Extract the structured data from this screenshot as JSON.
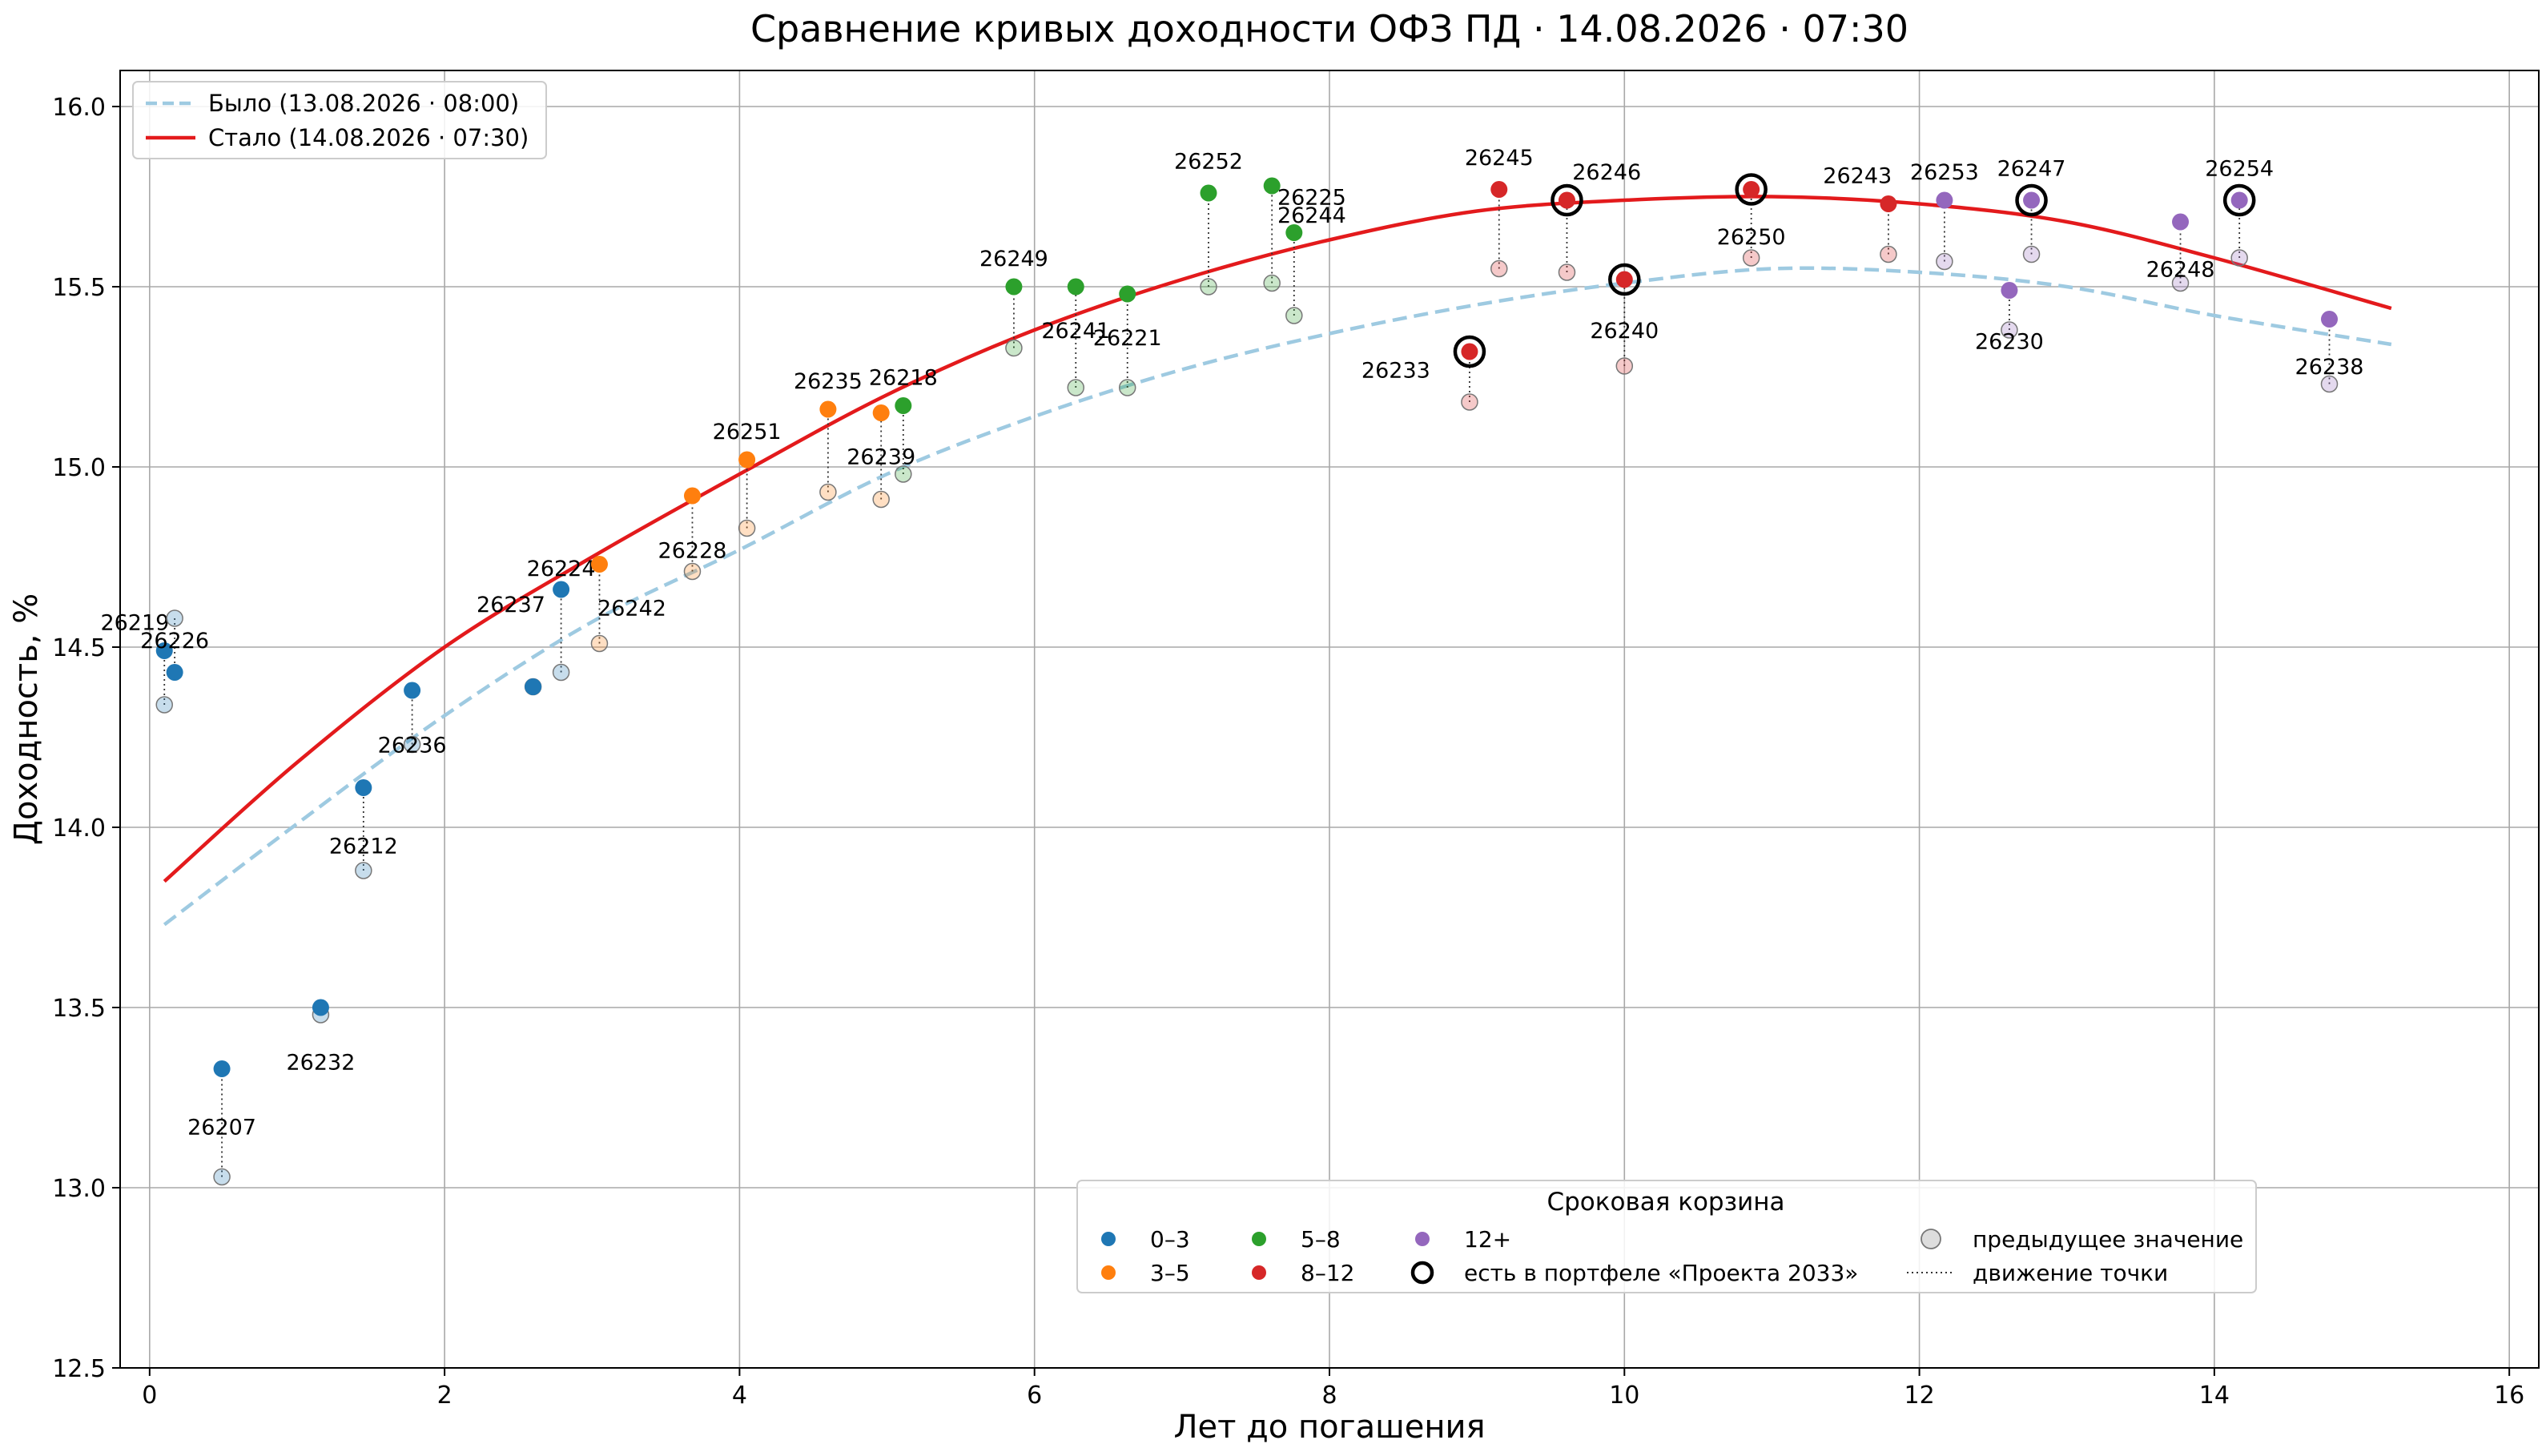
{
  "chart_data": {
    "type": "scatter",
    "title": "Сравнение кривых доходности ОФЗ ПД · 14.08.2026 · 07:30",
    "xlabel": "Лет до погашения",
    "ylabel": "Доходность, %",
    "xlim": [
      -0.2,
      16.2
    ],
    "ylim": [
      12.5,
      16.1
    ],
    "xticks": [
      0,
      2,
      4,
      6,
      8,
      10,
      12,
      14,
      16
    ],
    "yticks": [
      12.5,
      13.0,
      13.5,
      14.0,
      14.5,
      15.0,
      15.5,
      16.0
    ],
    "grid": true,
    "curves": [
      {
        "name": "Было (13.08.2026 · 08:00)",
        "style": "dashed",
        "color": "#9ecae1",
        "x": [
          0.1,
          1,
          2,
          3,
          4,
          5,
          6,
          7,
          8,
          9,
          10,
          11,
          12,
          13,
          14,
          15.2
        ],
        "y": [
          13.73,
          14.01,
          14.31,
          14.57,
          14.77,
          14.98,
          15.14,
          15.27,
          15.37,
          15.45,
          15.51,
          15.55,
          15.54,
          15.5,
          15.42,
          15.34
        ]
      },
      {
        "name": "Стало (14.08.2026 · 07:30)",
        "style": "solid",
        "color": "#e31a1c",
        "x": [
          0.1,
          1,
          2,
          3,
          4,
          5,
          6,
          7,
          8,
          9,
          10,
          11,
          12,
          13,
          14,
          15.2
        ],
        "y": [
          13.85,
          14.18,
          14.5,
          14.75,
          14.98,
          15.2,
          15.38,
          15.52,
          15.63,
          15.71,
          15.74,
          15.75,
          15.73,
          15.68,
          15.58,
          15.44
        ]
      }
    ],
    "bucket_colors": {
      "0–3": "#1f77b4",
      "3–5": "#ff7f0e",
      "5–8": "#2ca02c",
      "8–12": "#d62728",
      "12+": "#9467bd"
    },
    "points": [
      {
        "label": "26219",
        "x": 0.1,
        "y": 14.49,
        "prev": 14.34,
        "bucket": "0–3",
        "portfolio": false,
        "lx": -0.1,
        "ly": 14.57
      },
      {
        "label": "26226",
        "x": 0.17,
        "y": 14.43,
        "prev": 14.58,
        "bucket": "0–3",
        "portfolio": false,
        "lx": 0.17,
        "ly": 14.52
      },
      {
        "label": "26207",
        "x": 0.49,
        "y": 13.33,
        "prev": 13.03,
        "bucket": "0–3",
        "portfolio": false,
        "lx": 0.49,
        "ly": 13.17
      },
      {
        "label": "26232",
        "x": 1.16,
        "y": 13.5,
        "prev": 13.48,
        "bucket": "0–3",
        "portfolio": false,
        "lx": 1.16,
        "ly": 13.35
      },
      {
        "label": "26212",
        "x": 1.45,
        "y": 14.11,
        "prev": 13.88,
        "bucket": "0–3",
        "portfolio": false,
        "lx": 1.45,
        "ly": 13.95
      },
      {
        "label": "26236",
        "x": 1.78,
        "y": 14.38,
        "prev": 14.23,
        "bucket": "0–3",
        "portfolio": false,
        "lx": 1.78,
        "ly": 14.23
      },
      {
        "label": "26237",
        "x": 2.6,
        "y": 14.39,
        "prev": 14.39,
        "bucket": "0–3",
        "portfolio": false,
        "lx": 2.45,
        "ly": 14.62
      },
      {
        "label": "26224",
        "x": 2.79,
        "y": 14.66,
        "prev": 14.43,
        "bucket": "0–3",
        "portfolio": false,
        "lx": 2.79,
        "ly": 14.72
      },
      {
        "label": "26242",
        "x": 3.05,
        "y": 14.73,
        "prev": 14.51,
        "bucket": "3–5",
        "portfolio": false,
        "lx": 3.27,
        "ly": 14.61
      },
      {
        "label": "26228",
        "x": 3.68,
        "y": 14.92,
        "prev": 14.71,
        "bucket": "3–5",
        "portfolio": false,
        "lx": 3.68,
        "ly": 14.77
      },
      {
        "label": "26251",
        "x": 4.05,
        "y": 15.02,
        "prev": 14.83,
        "bucket": "3–5",
        "portfolio": false,
        "lx": 4.05,
        "ly": 15.1
      },
      {
        "label": "26235",
        "x": 4.6,
        "y": 15.16,
        "prev": 14.93,
        "bucket": "3–5",
        "portfolio": false,
        "lx": 4.6,
        "ly": 15.24
      },
      {
        "label": "26239",
        "x": 4.96,
        "y": 15.15,
        "prev": 14.91,
        "bucket": "3–5",
        "portfolio": false,
        "lx": 4.96,
        "ly": 15.03
      },
      {
        "label": "26218",
        "x": 5.11,
        "y": 15.17,
        "prev": 14.98,
        "bucket": "5–8",
        "portfolio": false,
        "lx": 5.11,
        "ly": 15.25
      },
      {
        "label": "26249",
        "x": 5.86,
        "y": 15.5,
        "prev": 15.33,
        "bucket": "5–8",
        "portfolio": false,
        "lx": 5.86,
        "ly": 15.58
      },
      {
        "label": "26241",
        "x": 6.28,
        "y": 15.5,
        "prev": 15.22,
        "bucket": "5–8",
        "portfolio": false,
        "lx": 6.28,
        "ly": 15.38
      },
      {
        "label": "26221",
        "x": 6.63,
        "y": 15.48,
        "prev": 15.22,
        "bucket": "5–8",
        "portfolio": false,
        "lx": 6.63,
        "ly": 15.36
      },
      {
        "label": "26252",
        "x": 7.18,
        "y": 15.76,
        "prev": 15.5,
        "bucket": "5–8",
        "portfolio": false,
        "lx": 7.18,
        "ly": 15.85
      },
      {
        "label": "26225",
        "x": 7.61,
        "y": 15.78,
        "prev": 15.51,
        "bucket": "5–8",
        "portfolio": false,
        "lx": 7.88,
        "ly": 15.75
      },
      {
        "label": "26244",
        "x": 7.76,
        "y": 15.65,
        "prev": 15.42,
        "bucket": "5–8",
        "portfolio": false,
        "lx": 7.88,
        "ly": 15.7
      },
      {
        "label": "26233",
        "x": 8.95,
        "y": 15.32,
        "prev": 15.18,
        "bucket": "8–12",
        "portfolio": true,
        "lx": 8.45,
        "ly": 15.27
      },
      {
        "label": "26245",
        "x": 9.15,
        "y": 15.77,
        "prev": 15.55,
        "bucket": "8–12",
        "portfolio": false,
        "lx": 9.15,
        "ly": 15.86
      },
      {
        "label": "26246",
        "x": 9.61,
        "y": 15.74,
        "prev": 15.54,
        "bucket": "8–12",
        "portfolio": true,
        "lx": 9.88,
        "ly": 15.82
      },
      {
        "label": "26240",
        "x": 10.0,
        "y": 15.52,
        "prev": 15.28,
        "bucket": "8–12",
        "portfolio": true,
        "lx": 10.0,
        "ly": 15.38
      },
      {
        "label": "26250",
        "x": 10.86,
        "y": 15.77,
        "prev": 15.58,
        "bucket": "8–12",
        "portfolio": true,
        "lx": 10.86,
        "ly": 15.64
      },
      {
        "label": "26243",
        "x": 11.79,
        "y": 15.73,
        "prev": 15.59,
        "bucket": "8–12",
        "portfolio": false,
        "lx": 11.58,
        "ly": 15.81
      },
      {
        "label": "26253",
        "x": 12.17,
        "y": 15.74,
        "prev": 15.57,
        "bucket": "12+",
        "portfolio": false,
        "lx": 12.17,
        "ly": 15.82
      },
      {
        "label": "26230",
        "x": 12.61,
        "y": 15.49,
        "prev": 15.38,
        "bucket": "12+",
        "portfolio": false,
        "lx": 12.61,
        "ly": 15.35
      },
      {
        "label": "26247",
        "x": 12.76,
        "y": 15.74,
        "prev": 15.59,
        "bucket": "12+",
        "portfolio": true,
        "lx": 12.76,
        "ly": 15.83
      },
      {
        "label": "26248",
        "x": 13.77,
        "y": 15.68,
        "prev": 15.51,
        "bucket": "12+",
        "portfolio": false,
        "lx": 13.77,
        "ly": 15.55
      },
      {
        "label": "26254",
        "x": 14.17,
        "y": 15.74,
        "prev": 15.58,
        "bucket": "12+",
        "portfolio": true,
        "lx": 14.17,
        "ly": 15.83
      },
      {
        "label": "26238",
        "x": 14.78,
        "y": 15.41,
        "prev": 15.23,
        "bucket": "12+",
        "portfolio": false,
        "lx": 14.78,
        "ly": 15.28
      }
    ],
    "legend_curves": {
      "placement": "top-left",
      "entries": [
        "Было (13.08.2026 · 08:00)",
        "Стало (14.08.2026 · 07:30)"
      ]
    },
    "legend_buckets": {
      "placement": "lower-center",
      "title": "Сроковая корзина",
      "entries": [
        "0–3",
        "3–5",
        "5–8",
        "8–12",
        "12+",
        "есть в портфеле «Проекта 2033»",
        "предыдущее значение",
        "движение точки"
      ]
    }
  }
}
